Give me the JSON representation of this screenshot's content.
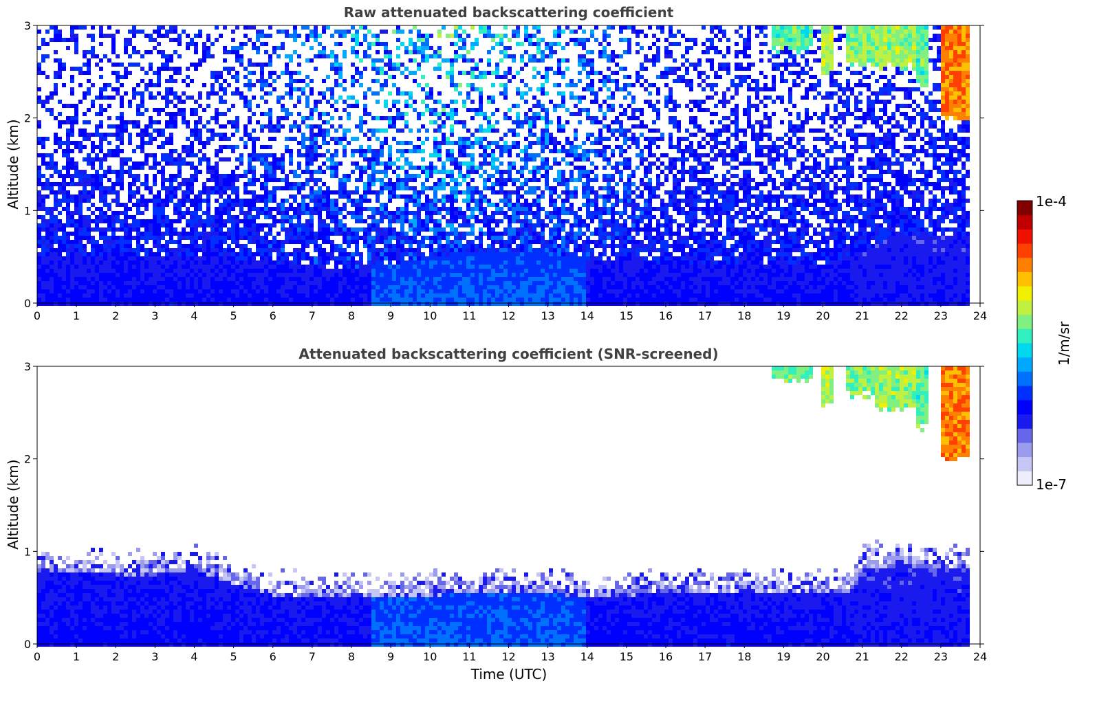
{
  "chart_data": [
    {
      "type": "heatmap",
      "title": "Raw attenuated backscattering coefficient",
      "xlabel": "",
      "ylabel": "Altitude (km)",
      "xlim": [
        0,
        24
      ],
      "ylim": [
        0,
        3
      ],
      "xticks": [
        "0",
        "1",
        "2",
        "3",
        "4",
        "5",
        "6",
        "7",
        "8",
        "9",
        "10",
        "11",
        "12",
        "13",
        "14",
        "15",
        "16",
        "17",
        "18",
        "19",
        "20",
        "21",
        "22",
        "23",
        "24"
      ],
      "yticks": [
        "0",
        "1",
        "2",
        "3"
      ],
      "data_end_hour": 23.8,
      "noise": "high",
      "boundary_layer_top_km": [
        [
          0,
          0.52
        ],
        [
          1,
          0.52
        ],
        [
          2,
          0.52
        ],
        [
          3,
          0.5
        ],
        [
          4,
          0.5
        ],
        [
          5,
          0.48
        ],
        [
          6,
          0.43
        ],
        [
          7,
          0.4
        ],
        [
          8,
          0.38
        ],
        [
          9,
          0.42
        ],
        [
          10,
          0.5
        ],
        [
          11,
          0.55
        ],
        [
          12,
          0.55
        ],
        [
          13,
          0.55
        ],
        [
          14,
          0.48
        ],
        [
          15,
          0.45
        ],
        [
          16,
          0.42
        ],
        [
          17,
          0.42
        ],
        [
          18,
          0.42
        ],
        [
          19,
          0.42
        ],
        [
          20,
          0.42
        ],
        [
          21,
          0.55
        ],
        [
          22,
          0.75
        ],
        [
          23,
          0.75
        ],
        [
          23.8,
          0.75
        ]
      ],
      "cloud_streaks": [
        {
          "start_hour": 18.7,
          "end_hour": 19.7,
          "base_km": 2.7,
          "level": 0.55
        },
        {
          "start_hour": 20.0,
          "end_hour": 20.3,
          "base_km": 2.45,
          "level": 0.62
        },
        {
          "start_hour": 20.6,
          "end_hour": 21.3,
          "base_km": 2.55,
          "level": 0.58
        },
        {
          "start_hour": 21.3,
          "end_hour": 22.4,
          "base_km": 2.5,
          "level": 0.6
        },
        {
          "start_hour": 22.4,
          "end_hour": 22.7,
          "base_km": 2.3,
          "level": 0.55
        },
        {
          "start_hour": 23.0,
          "end_hour": 23.8,
          "base_km": 1.95,
          "level": 0.78
        }
      ]
    },
    {
      "type": "heatmap",
      "title": "Attenuated backscattering coefficient (SNR-screened)",
      "xlabel": "Time (UTC)",
      "ylabel": "Altitude (km)",
      "xlim": [
        0,
        24
      ],
      "ylim": [
        0,
        3
      ],
      "xticks": [
        "0",
        "1",
        "2",
        "3",
        "4",
        "5",
        "6",
        "7",
        "8",
        "9",
        "10",
        "11",
        "12",
        "13",
        "14",
        "15",
        "16",
        "17",
        "18",
        "19",
        "20",
        "21",
        "22",
        "23",
        "24"
      ],
      "yticks": [
        "0",
        "1",
        "2",
        "3"
      ],
      "data_end_hour": 23.8,
      "noise": "screened",
      "boundary_layer_top_km": [
        [
          0,
          0.75
        ],
        [
          1,
          0.78
        ],
        [
          2,
          0.75
        ],
        [
          3,
          0.75
        ],
        [
          4,
          0.8
        ],
        [
          5,
          0.65
        ],
        [
          6,
          0.52
        ],
        [
          7,
          0.52
        ],
        [
          8,
          0.52
        ],
        [
          9,
          0.5
        ],
        [
          10,
          0.52
        ],
        [
          11,
          0.55
        ],
        [
          12,
          0.57
        ],
        [
          13,
          0.55
        ],
        [
          14,
          0.5
        ],
        [
          15,
          0.52
        ],
        [
          16,
          0.55
        ],
        [
          17,
          0.55
        ],
        [
          18,
          0.55
        ],
        [
          19,
          0.55
        ],
        [
          20,
          0.55
        ],
        [
          20.7,
          0.55
        ],
        [
          21,
          0.82
        ],
        [
          22,
          0.85
        ],
        [
          23,
          0.8
        ],
        [
          23.8,
          0.8
        ]
      ],
      "cloud_streaks": [
        {
          "start_hour": 18.7,
          "end_hour": 19.7,
          "base_km": 2.8,
          "level": 0.55
        },
        {
          "start_hour": 20.0,
          "end_hour": 20.3,
          "base_km": 2.55,
          "level": 0.62
        },
        {
          "start_hour": 20.6,
          "end_hour": 21.3,
          "base_km": 2.65,
          "level": 0.58
        },
        {
          "start_hour": 21.3,
          "end_hour": 22.4,
          "base_km": 2.5,
          "level": 0.6
        },
        {
          "start_hour": 22.4,
          "end_hour": 22.7,
          "base_km": 2.3,
          "level": 0.55
        },
        {
          "start_hour": 23.0,
          "end_hour": 23.8,
          "base_km": 1.95,
          "level": 0.78
        }
      ]
    }
  ],
  "colorbar": {
    "label": "1/m/sr",
    "max_label": "1e-4",
    "min_label": "1e-7",
    "colormap": "jet-with-light-blue-low-end",
    "colors": [
      "#eeeefc",
      "#c6c6f4",
      "#9c9cee",
      "#6666ea",
      "#1a1aee",
      "#0000ff",
      "#0030ff",
      "#0070ff",
      "#00a8ff",
      "#00d8ef",
      "#30f0c0",
      "#80f080",
      "#c0f040",
      "#f0f000",
      "#ffc000",
      "#ff8000",
      "#ff4000",
      "#f01000",
      "#c00000",
      "#800000"
    ]
  }
}
